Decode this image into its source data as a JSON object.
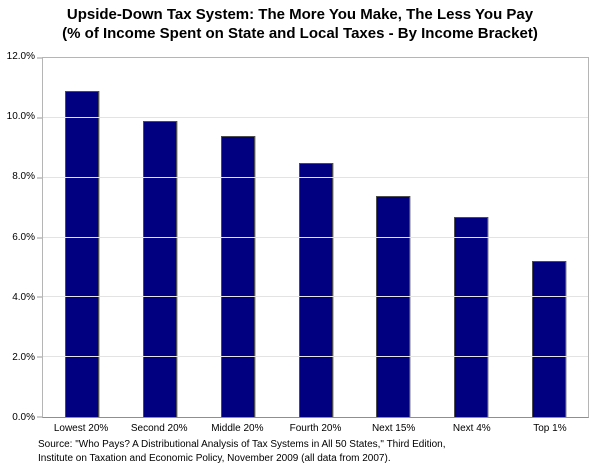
{
  "title": {
    "line1": "Upside-Down Tax System: The More You Make, The Less You Pay",
    "line2": "(% of Income Spent on State and Local Taxes - By Income Bracket)"
  },
  "chart_data": {
    "type": "bar",
    "title": "Upside-Down Tax System: The More You Make, The Less You Pay (% of Income Spent on State and Local Taxes - By Income Bracket)",
    "categories": [
      "Lowest 20%",
      "Second 20%",
      "Middle 20%",
      "Fourth 20%",
      "Next 15%",
      "Next 4%",
      "Top 1%"
    ],
    "values": [
      10.9,
      9.9,
      9.4,
      8.5,
      7.4,
      6.7,
      5.2
    ],
    "xlabel": "",
    "ylabel": "",
    "ylim": [
      0,
      12
    ],
    "y_ticks": [
      "0.0%",
      "2.0%",
      "4.0%",
      "6.0%",
      "8.0%",
      "10.0%",
      "12.0%"
    ],
    "grid": true,
    "legend_position": "none",
    "bar_color": "#000080",
    "bar_border_color": "#4d4d4d",
    "gridline_color": "#e3e3e3",
    "plot_border_color": "#b5b5b5"
  },
  "source": {
    "line1": "Source: \"Who Pays? A Distributional Analysis of Tax Systems in All 50 States,\" Third Edition,",
    "line2": "Institute on Taxation and Economic Policy, November 2009 (all data from 2007)."
  }
}
